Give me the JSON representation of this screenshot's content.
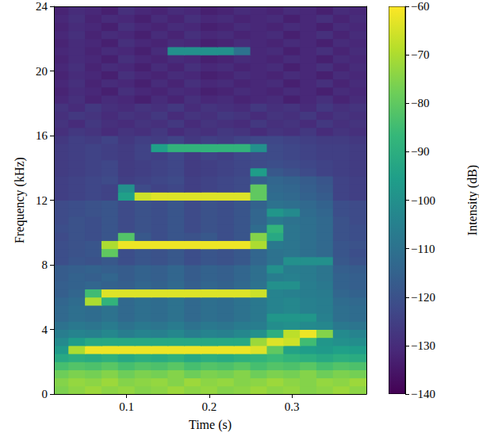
{
  "chart_data": {
    "type": "heatmap",
    "xlabel": "Time (s)",
    "ylabel": "Frequency (kHz)",
    "xlim": [
      0.012,
      0.39
    ],
    "xticks": [
      0.1,
      0.2,
      0.3
    ],
    "ylim": [
      0,
      24
    ],
    "yticks": [
      0,
      4,
      8,
      12,
      16,
      20,
      24
    ],
    "x": [
      0.02,
      0.04,
      0.06,
      0.08,
      0.1,
      0.12,
      0.14,
      0.16,
      0.18,
      0.2,
      0.22,
      0.24,
      0.26,
      0.28,
      0.3,
      0.32,
      0.34,
      0.36,
      0.38
    ],
    "y": [
      0.25,
      0.75,
      1.25,
      1.75,
      2.25,
      2.75,
      3.25,
      3.75,
      4.25,
      4.75,
      5.25,
      5.75,
      6.25,
      6.75,
      7.25,
      7.75,
      8.25,
      8.75,
      9.25,
      9.75,
      10.25,
      10.75,
      11.25,
      11.75,
      12.25,
      12.75,
      13.25,
      13.75,
      14.25,
      14.75,
      15.25,
      15.75,
      16.25,
      16.75,
      17.25,
      17.75,
      18.25,
      18.75,
      19.25,
      19.75,
      20.25,
      20.75,
      21.25,
      21.75,
      22.25,
      22.75,
      23.25,
      23.75
    ],
    "z": [
      [
        -76,
        -74,
        -72,
        -74,
        -73,
        -75,
        -74,
        -72,
        -74,
        -73,
        -75,
        -74,
        -72,
        -74,
        -73,
        -75,
        -74,
        -72,
        -74
      ],
      [
        -75,
        -73,
        -74,
        -72,
        -75,
        -74,
        -73,
        -75,
        -72,
        -74,
        -73,
        -75,
        -74,
        -72,
        -74,
        -75,
        -73,
        -74,
        -72
      ],
      [
        -78,
        -76,
        -77,
        -75,
        -78,
        -76,
        -77,
        -75,
        -78,
        -76,
        -77,
        -75,
        -78,
        -76,
        -77,
        -75,
        -78,
        -76,
        -77
      ],
      [
        -84,
        -82,
        -83,
        -81,
        -84,
        -82,
        -83,
        -81,
        -84,
        -82,
        -83,
        -81,
        -84,
        -82,
        -83,
        -81,
        -84,
        -82,
        -83
      ],
      [
        -92,
        -90,
        -91,
        -89,
        -92,
        -90,
        -91,
        -89,
        -92,
        -90,
        -91,
        -89,
        -88,
        -86,
        -88,
        -90,
        -92,
        -90,
        -91
      ],
      [
        -97,
        -70,
        -62,
        -62,
        -62,
        -62,
        -62,
        -62,
        -62,
        -62,
        -62,
        -62,
        -64,
        -80,
        -94,
        -96,
        -97,
        -95,
        -96
      ],
      [
        -102,
        -96,
        -92,
        -92,
        -92,
        -92,
        -92,
        -92,
        -92,
        -92,
        -92,
        -92,
        -72,
        -64,
        -66,
        -85,
        -98,
        -100,
        -101
      ],
      [
        -106,
        -104,
        -105,
        -103,
        -106,
        -104,
        -105,
        -103,
        -106,
        -104,
        -105,
        -103,
        -100,
        -90,
        -68,
        -62,
        -75,
        -102,
        -104
      ],
      [
        -110,
        -108,
        -109,
        -107,
        -110,
        -108,
        -109,
        -107,
        -110,
        -108,
        -109,
        -107,
        -106,
        -101,
        -100,
        -102,
        -103,
        -108,
        -109
      ],
      [
        -113,
        -111,
        -112,
        -110,
        -113,
        -111,
        -112,
        -110,
        -113,
        -111,
        -112,
        -110,
        -108,
        -98,
        -98,
        -98,
        -105,
        -111,
        -112
      ],
      [
        -113,
        -111,
        -112,
        -110,
        -113,
        -111,
        -112,
        -110,
        -113,
        -111,
        -112,
        -110,
        -108,
        -104,
        -103,
        -105,
        -106,
        -111,
        -112
      ],
      [
        -114,
        -112,
        -70,
        -88,
        -113,
        -111,
        -112,
        -110,
        -113,
        -111,
        -112,
        -110,
        -108,
        -104,
        -103,
        -105,
        -106,
        -112,
        -113
      ],
      [
        -116,
        -114,
        -85,
        -64,
        -64,
        -64,
        -64,
        -64,
        -64,
        -64,
        -64,
        -64,
        -66,
        -104,
        -105,
        -106,
        -107,
        -114,
        -115
      ],
      [
        -116,
        -115,
        -114,
        -115,
        -116,
        -114,
        -115,
        -113,
        -116,
        -114,
        -115,
        -113,
        -110,
        -100,
        -100,
        -106,
        -108,
        -115,
        -116
      ],
      [
        -117,
        -115,
        -116,
        -114,
        -117,
        -115,
        -116,
        -114,
        -117,
        -115,
        -116,
        -114,
        -111,
        -106,
        -105,
        -107,
        -109,
        -115,
        -116
      ],
      [
        -117,
        -116,
        -115,
        -116,
        -117,
        -115,
        -116,
        -114,
        -117,
        -115,
        -116,
        -114,
        -111,
        -100,
        -106,
        -107,
        -109,
        -116,
        -117
      ],
      [
        -121,
        -119,
        -120,
        -118,
        -121,
        -119,
        -120,
        -118,
        -121,
        -119,
        -120,
        -118,
        -114,
        -110,
        -100,
        -100,
        -100,
        -118,
        -120
      ],
      [
        -121,
        -120,
        -119,
        -80,
        -121,
        -119,
        -120,
        -118,
        -121,
        -119,
        -120,
        -118,
        -114,
        -110,
        -109,
        -111,
        -113,
        -119,
        -121
      ],
      [
        -121,
        -120,
        -119,
        -70,
        -62,
        -62,
        -62,
        -62,
        -62,
        -62,
        -62,
        -62,
        -70,
        -108,
        -109,
        -111,
        -113,
        -119,
        -120
      ],
      [
        -122,
        -120,
        -121,
        -119,
        -82,
        -118,
        -121,
        -119,
        -120,
        -118,
        -121,
        -119,
        -75,
        -92,
        -109,
        -111,
        -113,
        -120,
        -121
      ],
      [
        -121,
        -120,
        -121,
        -119,
        -122,
        -120,
        -121,
        -119,
        -122,
        -120,
        -121,
        -119,
        -112,
        -88,
        -109,
        -111,
        -113,
        -120,
        -121
      ],
      [
        -122,
        -120,
        -121,
        -119,
        -122,
        -120,
        -121,
        -119,
        -122,
        -120,
        -121,
        -119,
        -114,
        -108,
        -110,
        -111,
        -113,
        -120,
        -122
      ],
      [
        -122,
        -121,
        -120,
        -119,
        -122,
        -120,
        -121,
        -119,
        -122,
        -120,
        -121,
        -119,
        -114,
        -98,
        -102,
        -112,
        -114,
        -121,
        -122
      ],
      [
        -122,
        -121,
        -120,
        -119,
        -122,
        -120,
        -121,
        -119,
        -122,
        -120,
        -121,
        -119,
        -115,
        -110,
        -111,
        -113,
        -115,
        -121,
        -122
      ],
      [
        -125,
        -124,
        -123,
        -124,
        -95,
        -66,
        -64,
        -64,
        -64,
        -64,
        -64,
        -64,
        -80,
        -112,
        -113,
        -115,
        -117,
        -124,
        -125
      ],
      [
        -125,
        -124,
        -123,
        -124,
        -100,
        -122,
        -124,
        -123,
        -125,
        -124,
        -123,
        -122,
        -80,
        -113,
        -114,
        -116,
        -118,
        -124,
        -125
      ],
      [
        -125,
        -124,
        -123,
        -122,
        -125,
        -124,
        -123,
        -122,
        -125,
        -124,
        -123,
        -122,
        -116,
        -114,
        -115,
        -117,
        -119,
        -124,
        -125
      ],
      [
        -126,
        -125,
        -124,
        -123,
        -126,
        -125,
        -124,
        -123,
        -126,
        -125,
        -124,
        -123,
        -96,
        -118,
        -120,
        -122,
        -124,
        -125,
        -126
      ],
      [
        -126,
        -125,
        -124,
        -123,
        -126,
        -125,
        -124,
        -123,
        -126,
        -125,
        -124,
        -123,
        -122,
        -121,
        -122,
        -123,
        -124,
        -125,
        -126
      ],
      [
        -126,
        -125,
        -124,
        -125,
        -126,
        -124,
        -125,
        -123,
        -126,
        -124,
        -125,
        -123,
        -122,
        -122,
        -123,
        -124,
        -125,
        -125,
        -126
      ],
      [
        -126,
        -125,
        -124,
        -125,
        -126,
        -124,
        -95,
        -88,
        -88,
        -88,
        -88,
        -88,
        -100,
        -122,
        -123,
        -124,
        -125,
        -125,
        -126
      ],
      [
        -127,
        -125,
        -126,
        -124,
        -127,
        -125,
        -126,
        -124,
        -127,
        -125,
        -126,
        -124,
        -123,
        -123,
        -124,
        -125,
        -126,
        -126,
        -127
      ],
      [
        -129,
        -127,
        -128,
        -130,
        -128,
        -129,
        -127,
        -130,
        -128,
        -129,
        -127,
        -128,
        -130,
        -128,
        -129,
        -127,
        -130,
        -128,
        -129
      ],
      [
        -128,
        -130,
        -127,
        -129,
        -130,
        -128,
        -129,
        -127,
        -130,
        -128,
        -129,
        -130,
        -127,
        -129,
        -128,
        -130,
        -127,
        -129,
        -128
      ],
      [
        -129,
        -127,
        -128,
        -130,
        -128,
        -129,
        -127,
        -130,
        -128,
        -129,
        -127,
        -128,
        -130,
        -128,
        -129,
        -127,
        -130,
        -128,
        -129
      ],
      [
        -128,
        -130,
        -127,
        -129,
        -130,
        -128,
        -129,
        -127,
        -130,
        -128,
        -129,
        -130,
        -127,
        -129,
        -128,
        -130,
        -127,
        -129,
        -128
      ],
      [
        -131,
        -129,
        -132,
        -130,
        -131,
        -133,
        -130,
        -132,
        -129,
        -131,
        -130,
        -132,
        -131,
        -130,
        -133,
        -131,
        -129,
        -132,
        -130
      ],
      [
        -132,
        -130,
        -131,
        -133,
        -129,
        -131,
        -132,
        -130,
        -131,
        -133,
        -132,
        -130,
        -131,
        -132,
        -130,
        -131,
        -133,
        -130,
        -131
      ],
      [
        -131,
        -129,
        -132,
        -130,
        -131,
        -133,
        -130,
        -132,
        -129,
        -131,
        -130,
        -132,
        -131,
        -130,
        -133,
        -131,
        -129,
        -132,
        -130
      ],
      [
        -132,
        -130,
        -131,
        -133,
        -129,
        -131,
        -132,
        -130,
        -131,
        -133,
        -132,
        -130,
        -131,
        -132,
        -130,
        -131,
        -133,
        -130,
        -131
      ],
      [
        -131,
        -129,
        -132,
        -130,
        -131,
        -133,
        -130,
        -132,
        -129,
        -131,
        -130,
        -132,
        -131,
        -130,
        -133,
        -131,
        -129,
        -132,
        -130
      ],
      [
        -132,
        -130,
        -131,
        -133,
        -129,
        -131,
        -132,
        -130,
        -131,
        -133,
        -132,
        -130,
        -131,
        -132,
        -130,
        -131,
        -133,
        -130,
        -131
      ],
      [
        -131,
        -130,
        -132,
        -130,
        -131,
        -133,
        -130,
        -100,
        -100,
        -100,
        -100,
        -110,
        -131,
        -130,
        -133,
        -131,
        -129,
        -132,
        -130
      ],
      [
        -132,
        -130,
        -131,
        -133,
        -129,
        -131,
        -132,
        -130,
        -131,
        -133,
        -132,
        -130,
        -131,
        -132,
        -130,
        -131,
        -133,
        -130,
        -131
      ],
      [
        -131,
        -129,
        -132,
        -130,
        -131,
        -133,
        -130,
        -132,
        -129,
        -131,
        -130,
        -132,
        -131,
        -130,
        -133,
        -131,
        -129,
        -132,
        -130
      ],
      [
        -132,
        -130,
        -131,
        -133,
        -129,
        -131,
        -132,
        -130,
        -131,
        -133,
        -132,
        -130,
        -131,
        -132,
        -130,
        -131,
        -133,
        -130,
        -131
      ],
      [
        -131,
        -129,
        -132,
        -130,
        -131,
        -133,
        -130,
        -132,
        -129,
        -131,
        -130,
        -132,
        -131,
        -130,
        -133,
        -131,
        -129,
        -132,
        -130
      ],
      [
        -132,
        -130,
        -131,
        -133,
        -129,
        -131,
        -132,
        -130,
        -131,
        -133,
        -132,
        -130,
        -131,
        -132,
        -130,
        -131,
        -133,
        -130,
        -131
      ]
    ],
    "colorbar": {
      "label": "Intensity (dB)",
      "range": [
        -140,
        -60
      ],
      "ticks": [
        {
          "value": -140,
          "label": "−140"
        },
        {
          "value": -130,
          "label": "−130"
        },
        {
          "value": -120,
          "label": "−120"
        },
        {
          "value": -110,
          "label": "−110"
        },
        {
          "value": -100,
          "label": "−100"
        },
        {
          "value": -90,
          "label": "−90"
        },
        {
          "value": -80,
          "label": "−80"
        },
        {
          "value": -70,
          "label": "−70"
        },
        {
          "value": -60,
          "label": "−60"
        }
      ]
    }
  }
}
